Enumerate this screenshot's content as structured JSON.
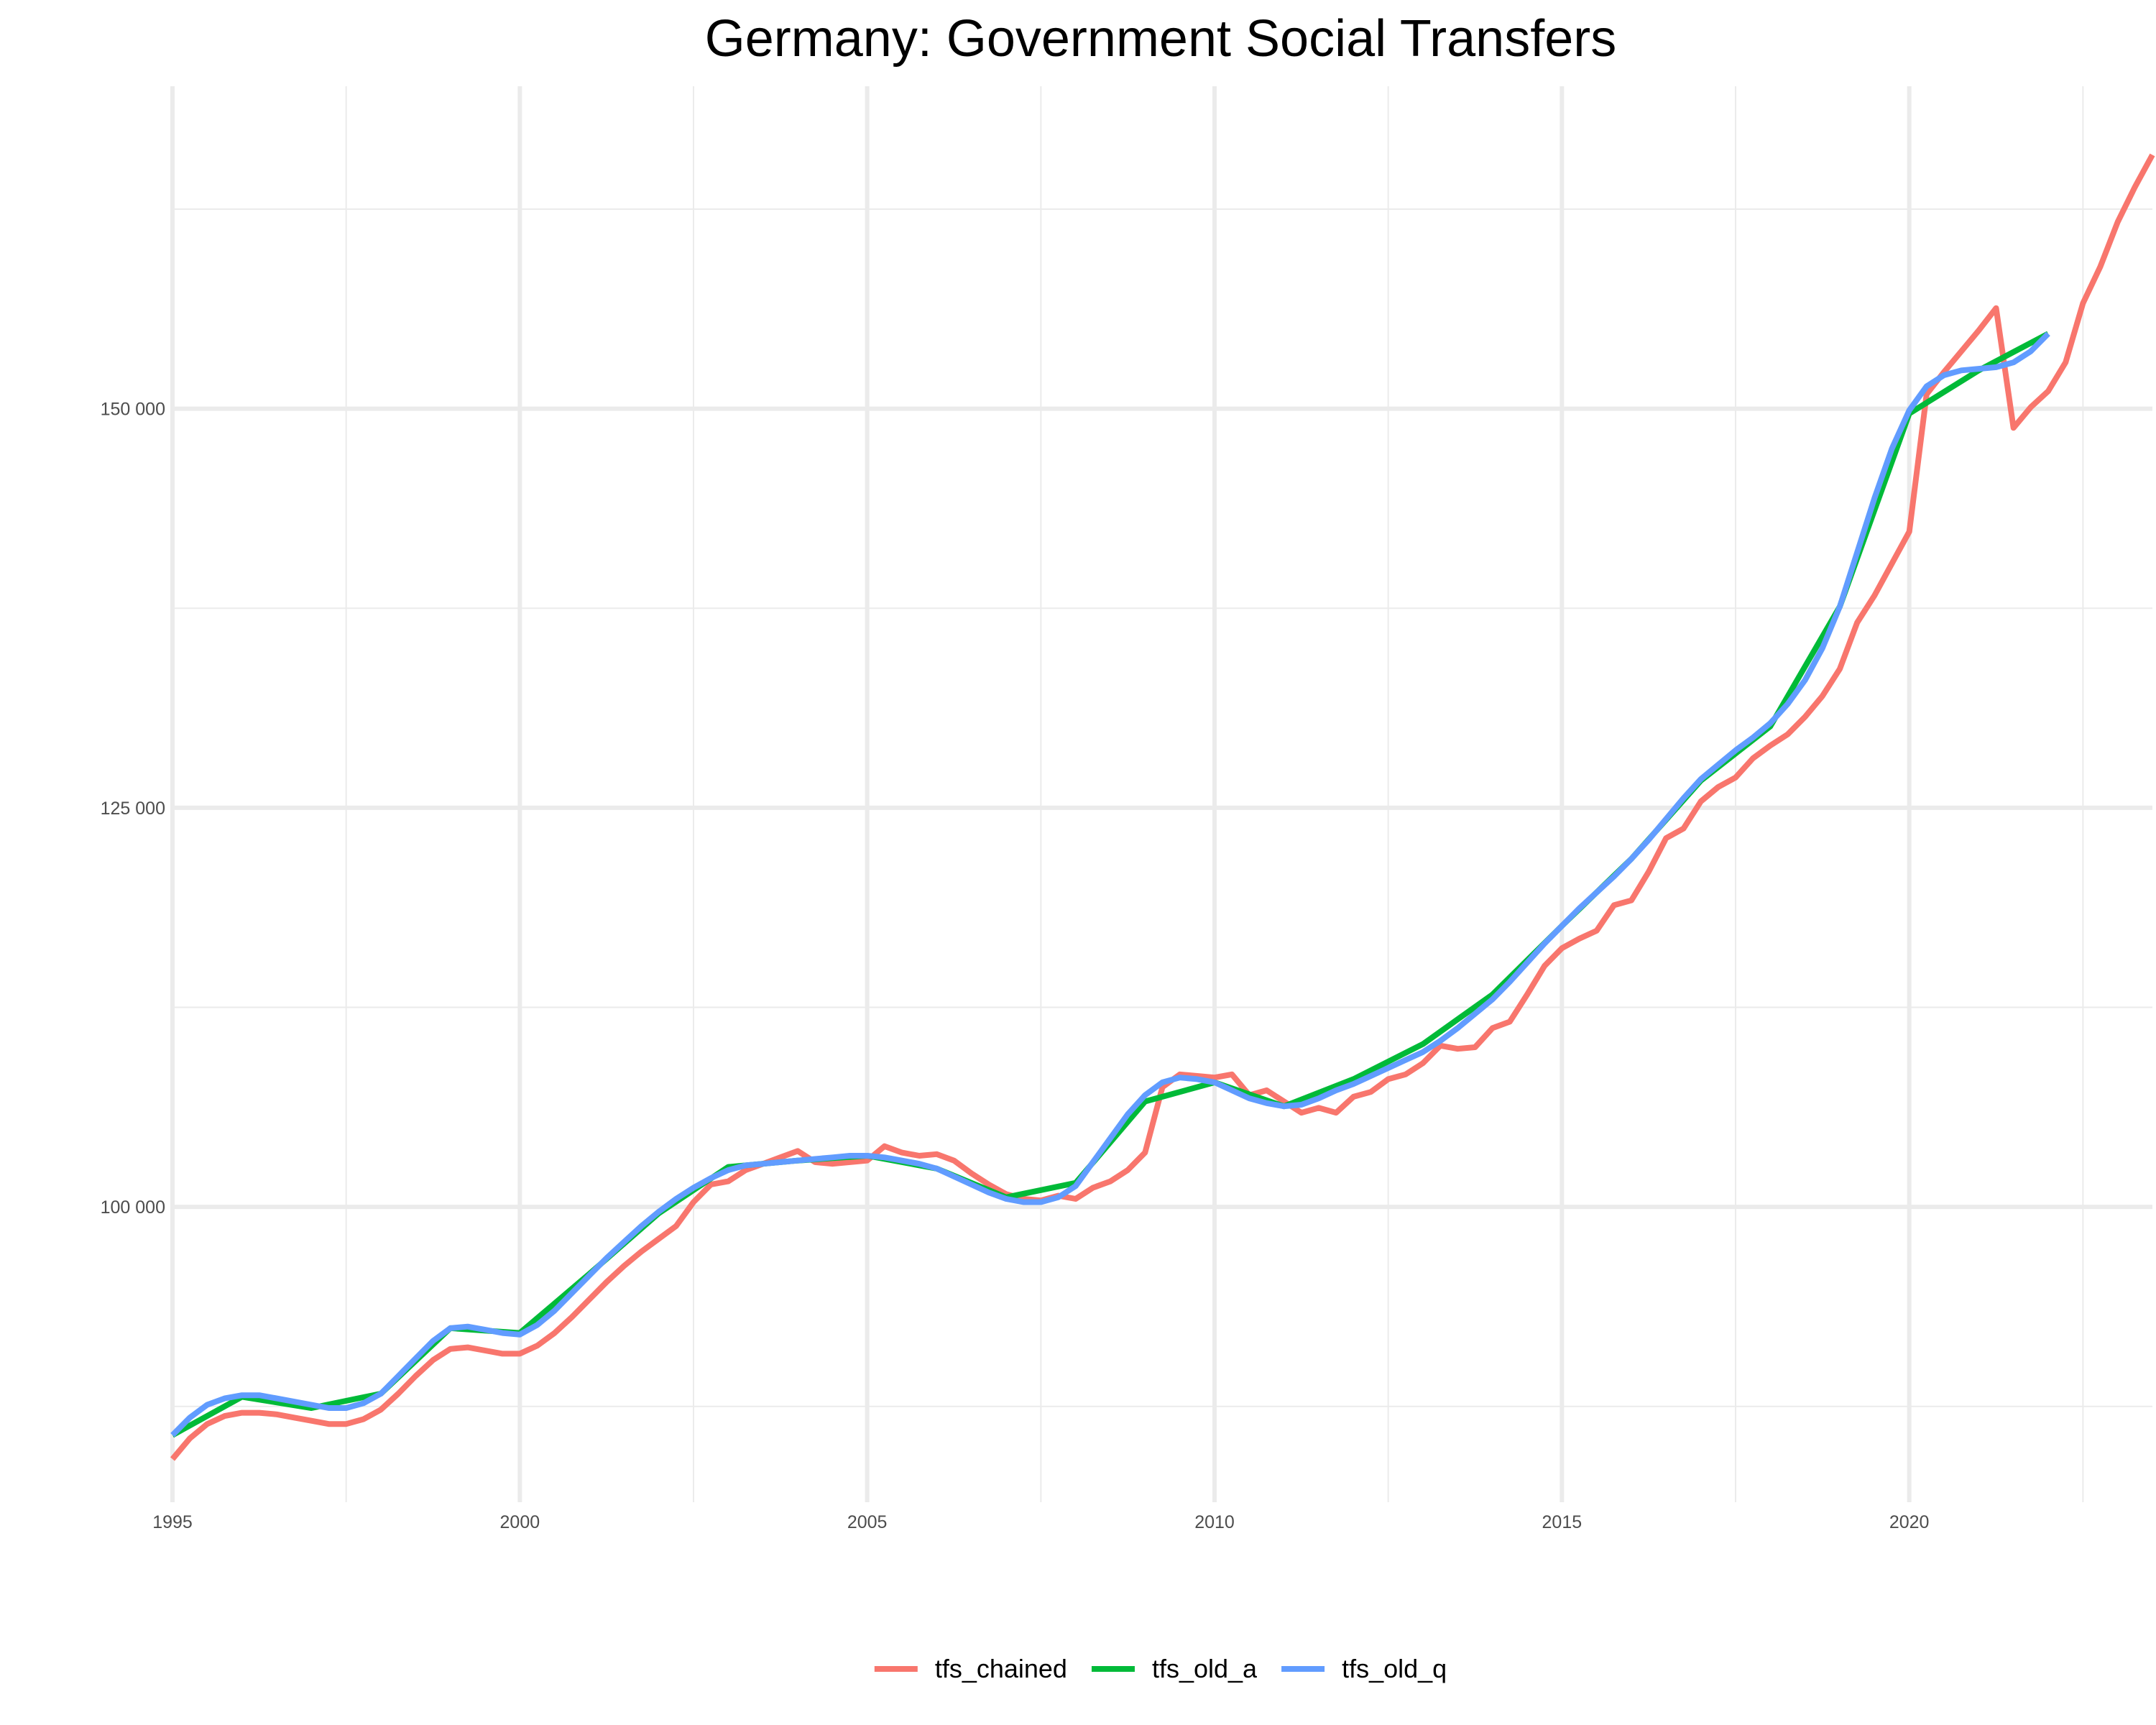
{
  "chart_data": {
    "type": "line",
    "title": "Germany: Government Social Transfers",
    "xlabel": "",
    "ylabel": "",
    "xlim": [
      1995,
      2023.5
    ],
    "ylim": [
      81500,
      170200
    ],
    "x_ticks": [
      1995,
      2000,
      2005,
      2010,
      2015,
      2020
    ],
    "x_tick_labels": [
      "1995",
      "2000",
      "2005",
      "2010",
      "2015",
      "2020"
    ],
    "y_ticks": [
      100000,
      125000,
      150000
    ],
    "y_tick_labels": [
      "100 000",
      "125 000",
      "150 000"
    ],
    "grid": true,
    "legend_position": "bottom",
    "series": [
      {
        "name": "tfs_chained",
        "color": "#F8766D",
        "points": [
          [
            1995.0,
            84200
          ],
          [
            1995.25,
            85500
          ],
          [
            1995.5,
            86400
          ],
          [
            1995.75,
            86900
          ],
          [
            1996.0,
            87100
          ],
          [
            1996.25,
            87100
          ],
          [
            1996.5,
            87000
          ],
          [
            1996.75,
            86800
          ],
          [
            1997.0,
            86600
          ],
          [
            1997.25,
            86400
          ],
          [
            1997.5,
            86400
          ],
          [
            1997.75,
            86700
          ],
          [
            1998.0,
            87300
          ],
          [
            1998.25,
            88300
          ],
          [
            1998.5,
            89400
          ],
          [
            1998.75,
            90400
          ],
          [
            1999.0,
            91100
          ],
          [
            1999.25,
            91200
          ],
          [
            1999.5,
            91000
          ],
          [
            1999.75,
            90800
          ],
          [
            2000.0,
            90800
          ],
          [
            2000.25,
            91300
          ],
          [
            2000.5,
            92100
          ],
          [
            2000.75,
            93100
          ],
          [
            2001.0,
            94200
          ],
          [
            2001.25,
            95300
          ],
          [
            2001.5,
            96300
          ],
          [
            2001.75,
            97200
          ],
          [
            2002.0,
            98000
          ],
          [
            2002.25,
            98800
          ],
          [
            2002.5,
            100300
          ],
          [
            2002.75,
            101400
          ],
          [
            2003.0,
            101600
          ],
          [
            2003.25,
            102300
          ],
          [
            2003.5,
            102700
          ],
          [
            2003.75,
            103100
          ],
          [
            2004.0,
            103500
          ],
          [
            2004.25,
            102800
          ],
          [
            2004.5,
            102700
          ],
          [
            2004.75,
            102800
          ],
          [
            2005.0,
            102900
          ],
          [
            2005.25,
            103800
          ],
          [
            2005.5,
            103400
          ],
          [
            2005.75,
            103200
          ],
          [
            2006.0,
            103300
          ],
          [
            2006.25,
            102900
          ],
          [
            2006.5,
            102100
          ],
          [
            2006.75,
            101400
          ],
          [
            2007.0,
            100800
          ],
          [
            2007.25,
            100500
          ],
          [
            2007.5,
            100400
          ],
          [
            2007.75,
            100700
          ],
          [
            2008.0,
            100500
          ],
          [
            2008.25,
            101200
          ],
          [
            2008.5,
            101600
          ],
          [
            2008.75,
            102300
          ],
          [
            2009.0,
            103400
          ],
          [
            2009.25,
            107500
          ],
          [
            2009.5,
            108300
          ],
          [
            2009.75,
            108200
          ],
          [
            2010.0,
            108100
          ],
          [
            2010.25,
            108300
          ],
          [
            2010.5,
            107000
          ],
          [
            2010.75,
            107300
          ],
          [
            2011.0,
            106600
          ],
          [
            2011.25,
            105900
          ],
          [
            2011.5,
            106200
          ],
          [
            2011.75,
            105900
          ],
          [
            2012.0,
            106900
          ],
          [
            2012.25,
            107200
          ],
          [
            2012.5,
            108000
          ],
          [
            2012.75,
            108300
          ],
          [
            2013.0,
            109000
          ],
          [
            2013.25,
            110100
          ],
          [
            2013.5,
            109900
          ],
          [
            2013.75,
            110000
          ],
          [
            2014.0,
            111200
          ],
          [
            2014.25,
            111600
          ],
          [
            2014.5,
            113300
          ],
          [
            2014.75,
            115100
          ],
          [
            2015.0,
            116200
          ],
          [
            2015.25,
            116800
          ],
          [
            2015.5,
            117300
          ],
          [
            2015.75,
            118900
          ],
          [
            2016.0,
            119200
          ],
          [
            2016.25,
            121000
          ],
          [
            2016.5,
            123100
          ],
          [
            2016.75,
            123700
          ],
          [
            2017.0,
            125400
          ],
          [
            2017.25,
            126300
          ],
          [
            2017.5,
            126900
          ],
          [
            2017.75,
            128100
          ],
          [
            2018.0,
            128900
          ],
          [
            2018.25,
            129600
          ],
          [
            2018.5,
            130700
          ],
          [
            2018.75,
            132000
          ],
          [
            2019.0,
            133700
          ],
          [
            2019.25,
            136600
          ],
          [
            2019.5,
            138300
          ],
          [
            2019.75,
            140300
          ],
          [
            2020.0,
            142300
          ],
          [
            2020.25,
            150900
          ],
          [
            2020.5,
            152300
          ],
          [
            2020.75,
            153600
          ],
          [
            2021.0,
            154900
          ],
          [
            2021.25,
            156300
          ],
          [
            2021.5,
            148800
          ],
          [
            2021.75,
            150100
          ],
          [
            2022.0,
            151100
          ],
          [
            2022.25,
            152900
          ],
          [
            2022.5,
            156600
          ],
          [
            2022.75,
            158900
          ],
          [
            2023.0,
            161700
          ],
          [
            2023.25,
            163900
          ],
          [
            2023.5,
            165900
          ]
        ]
      },
      {
        "name": "tfs_old_a",
        "color": "#00BA38",
        "points": [
          [
            1995.0,
            85700
          ],
          [
            1996.0,
            88100
          ],
          [
            1997.0,
            87400
          ],
          [
            1998.0,
            88300
          ],
          [
            1999.0,
            92400
          ],
          [
            2000.0,
            92100
          ],
          [
            2001.0,
            95800
          ],
          [
            2002.0,
            99600
          ],
          [
            2003.0,
            102500
          ],
          [
            2004.0,
            102900
          ],
          [
            2005.0,
            103200
          ],
          [
            2006.0,
            102400
          ],
          [
            2007.0,
            100600
          ],
          [
            2008.0,
            101500
          ],
          [
            2009.0,
            106600
          ],
          [
            2010.0,
            107800
          ],
          [
            2011.0,
            106300
          ],
          [
            2012.0,
            108000
          ],
          [
            2013.0,
            110200
          ],
          [
            2014.0,
            113300
          ],
          [
            2015.0,
            117600
          ],
          [
            2016.0,
            121800
          ],
          [
            2017.0,
            126700
          ],
          [
            2018.0,
            130100
          ],
          [
            2019.0,
            137600
          ],
          [
            2020.0,
            149700
          ],
          [
            2021.0,
            152400
          ],
          [
            2022.0,
            154700
          ]
        ]
      },
      {
        "name": "tfs_old_q",
        "color": "#619CFF",
        "points": [
          [
            1995.0,
            85700
          ],
          [
            1995.25,
            86800
          ],
          [
            1995.5,
            87600
          ],
          [
            1995.75,
            88000
          ],
          [
            1996.0,
            88200
          ],
          [
            1996.25,
            88200
          ],
          [
            1996.5,
            88000
          ],
          [
            1996.75,
            87800
          ],
          [
            1997.0,
            87600
          ],
          [
            1997.25,
            87400
          ],
          [
            1997.5,
            87400
          ],
          [
            1997.75,
            87700
          ],
          [
            1998.0,
            88300
          ],
          [
            1998.25,
            89400
          ],
          [
            1998.5,
            90500
          ],
          [
            1998.75,
            91600
          ],
          [
            1999.0,
            92400
          ],
          [
            1999.25,
            92500
          ],
          [
            1999.5,
            92300
          ],
          [
            1999.75,
            92100
          ],
          [
            2000.0,
            92000
          ],
          [
            2000.25,
            92600
          ],
          [
            2000.5,
            93500
          ],
          [
            2000.75,
            94600
          ],
          [
            2001.0,
            95700
          ],
          [
            2001.25,
            96800
          ],
          [
            2001.5,
            97800
          ],
          [
            2001.75,
            98800
          ],
          [
            2002.0,
            99700
          ],
          [
            2002.25,
            100500
          ],
          [
            2002.5,
            101200
          ],
          [
            2002.75,
            101800
          ],
          [
            2003.0,
            102300
          ],
          [
            2003.25,
            102600
          ],
          [
            2003.5,
            102700
          ],
          [
            2003.75,
            102800
          ],
          [
            2004.0,
            102900
          ],
          [
            2004.25,
            103000
          ],
          [
            2004.5,
            103100
          ],
          [
            2004.75,
            103200
          ],
          [
            2005.0,
            103200
          ],
          [
            2005.25,
            103100
          ],
          [
            2005.5,
            102900
          ],
          [
            2005.75,
            102700
          ],
          [
            2006.0,
            102400
          ],
          [
            2006.25,
            101900
          ],
          [
            2006.5,
            101400
          ],
          [
            2006.75,
            100900
          ],
          [
            2007.0,
            100500
          ],
          [
            2007.25,
            100300
          ],
          [
            2007.5,
            100300
          ],
          [
            2007.75,
            100600
          ],
          [
            2008.0,
            101300
          ],
          [
            2008.25,
            102800
          ],
          [
            2008.5,
            104300
          ],
          [
            2008.75,
            105800
          ],
          [
            2009.0,
            107000
          ],
          [
            2009.25,
            107800
          ],
          [
            2009.5,
            108100
          ],
          [
            2009.75,
            108000
          ],
          [
            2010.0,
            107800
          ],
          [
            2010.25,
            107300
          ],
          [
            2010.5,
            106800
          ],
          [
            2010.75,
            106500
          ],
          [
            2011.0,
            106300
          ],
          [
            2011.25,
            106400
          ],
          [
            2011.5,
            106800
          ],
          [
            2011.75,
            107300
          ],
          [
            2012.0,
            107700
          ],
          [
            2012.25,
            108200
          ],
          [
            2012.5,
            108700
          ],
          [
            2012.75,
            109200
          ],
          [
            2013.0,
            109700
          ],
          [
            2013.25,
            110400
          ],
          [
            2013.5,
            111200
          ],
          [
            2013.75,
            112100
          ],
          [
            2014.0,
            113000
          ],
          [
            2014.25,
            114100
          ],
          [
            2014.5,
            115300
          ],
          [
            2014.75,
            116500
          ],
          [
            2015.0,
            117600
          ],
          [
            2015.25,
            118700
          ],
          [
            2015.5,
            119700
          ],
          [
            2015.75,
            120700
          ],
          [
            2016.0,
            121800
          ],
          [
            2016.25,
            123000
          ],
          [
            2016.5,
            124300
          ],
          [
            2016.75,
            125600
          ],
          [
            2017.0,
            126800
          ],
          [
            2017.25,
            127700
          ],
          [
            2017.5,
            128600
          ],
          [
            2017.75,
            129400
          ],
          [
            2018.0,
            130300
          ],
          [
            2018.25,
            131500
          ],
          [
            2018.5,
            133000
          ],
          [
            2018.75,
            135000
          ],
          [
            2019.0,
            137600
          ],
          [
            2019.25,
            141000
          ],
          [
            2019.5,
            144400
          ],
          [
            2019.75,
            147500
          ],
          [
            2020.0,
            149900
          ],
          [
            2020.25,
            151400
          ],
          [
            2020.5,
            152100
          ],
          [
            2020.75,
            152400
          ],
          [
            2021.0,
            152500
          ],
          [
            2021.25,
            152600
          ],
          [
            2021.5,
            152900
          ],
          [
            2021.75,
            153600
          ],
          [
            2022.0,
            154700
          ]
        ]
      }
    ]
  }
}
